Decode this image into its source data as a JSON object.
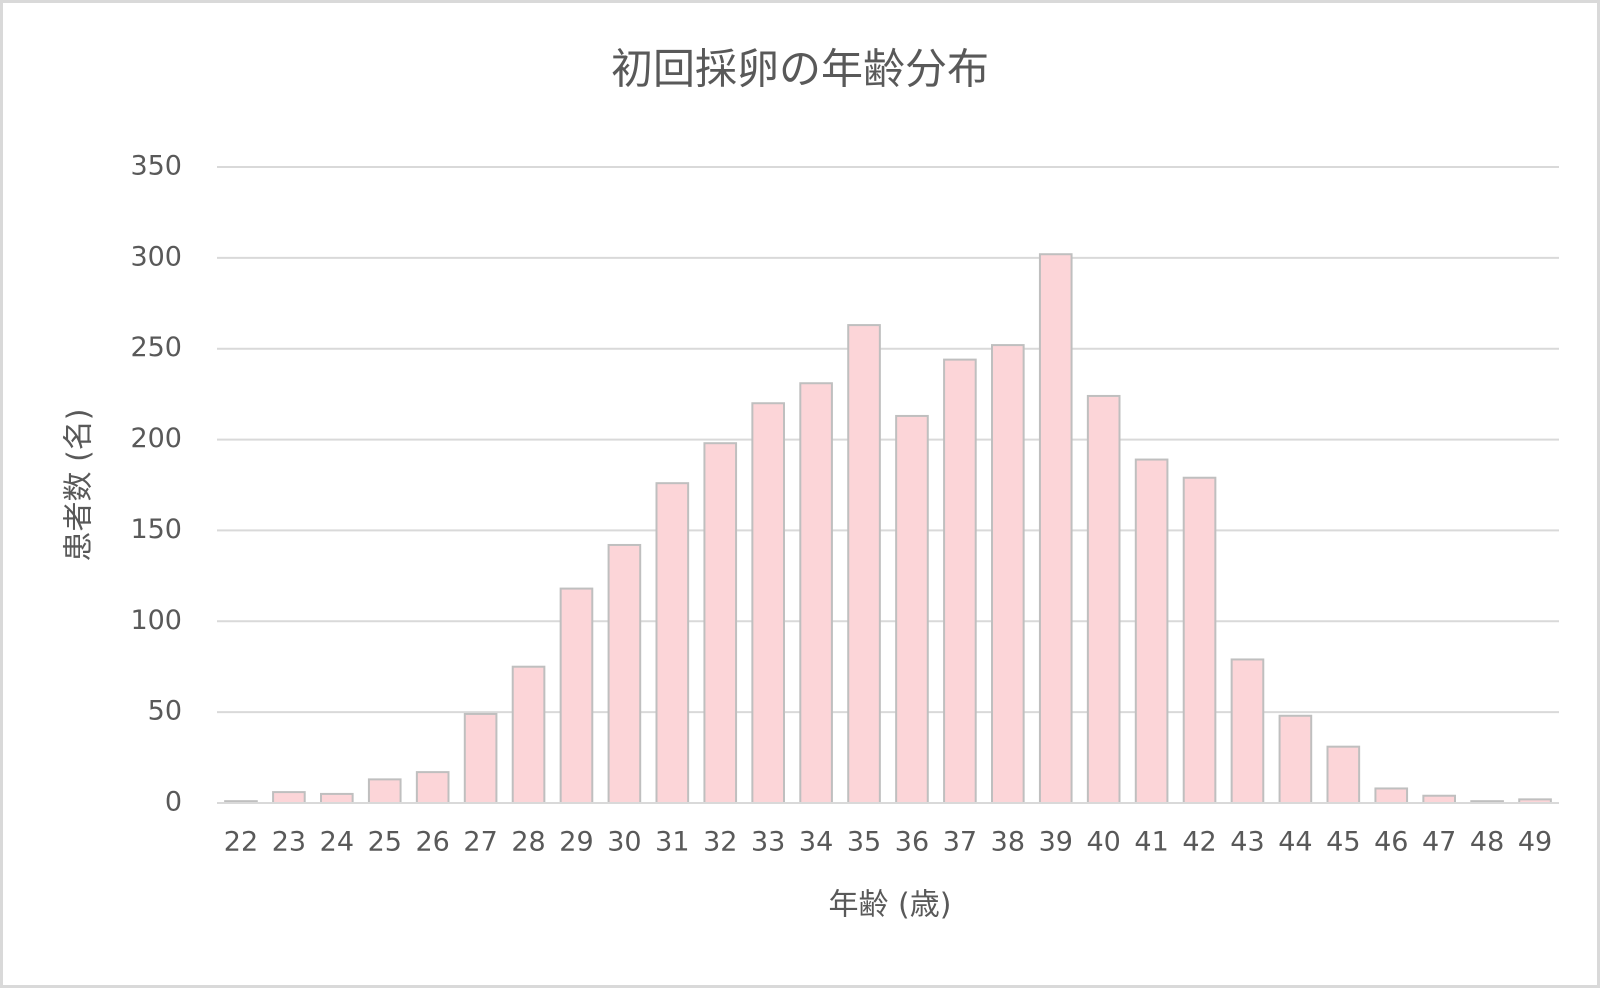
{
  "chart_data": {
    "type": "bar",
    "title": "初回採卵の年齢分布",
    "x_label": "年齢 (歳)",
    "y_label": "患者数 (名)",
    "categories": [
      "22",
      "23",
      "24",
      "25",
      "26",
      "27",
      "28",
      "29",
      "30",
      "31",
      "32",
      "33",
      "34",
      "35",
      "36",
      "37",
      "38",
      "39",
      "40",
      "41",
      "42",
      "43",
      "44",
      "45",
      "46",
      "47",
      "48",
      "49"
    ],
    "values": [
      1,
      6,
      5,
      13,
      17,
      49,
      75,
      118,
      142,
      176,
      198,
      220,
      231,
      263,
      213,
      244,
      252,
      302,
      224,
      189,
      179,
      79,
      48,
      31,
      8,
      4,
      1,
      2
    ],
    "color": "#fcd5d8",
    "ylim": [
      0,
      350
    ],
    "yticks": [
      0,
      50,
      100,
      150,
      200,
      250,
      300,
      350
    ],
    "grid": true
  }
}
